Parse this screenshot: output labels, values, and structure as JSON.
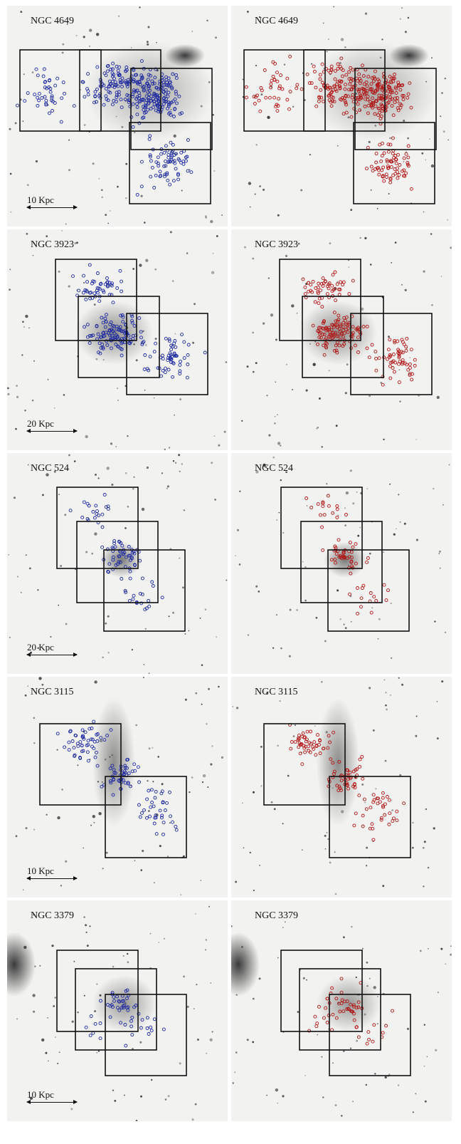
{
  "colors": {
    "left_markers": "#1e2aa0",
    "right_markers": "#b01616",
    "frames": "#111111"
  },
  "rows": [
    {
      "name": "NGC 4649",
      "scale": "10 Kpc"
    },
    {
      "name": "NGC 3923",
      "scale": "20 Kpc"
    },
    {
      "name": "NGC 524",
      "scale": "20 Kpc"
    },
    {
      "name": "NGC 3115",
      "scale": "10 Kpc"
    },
    {
      "name": "NGC 3379",
      "scale": "10 Kpc"
    }
  ]
}
